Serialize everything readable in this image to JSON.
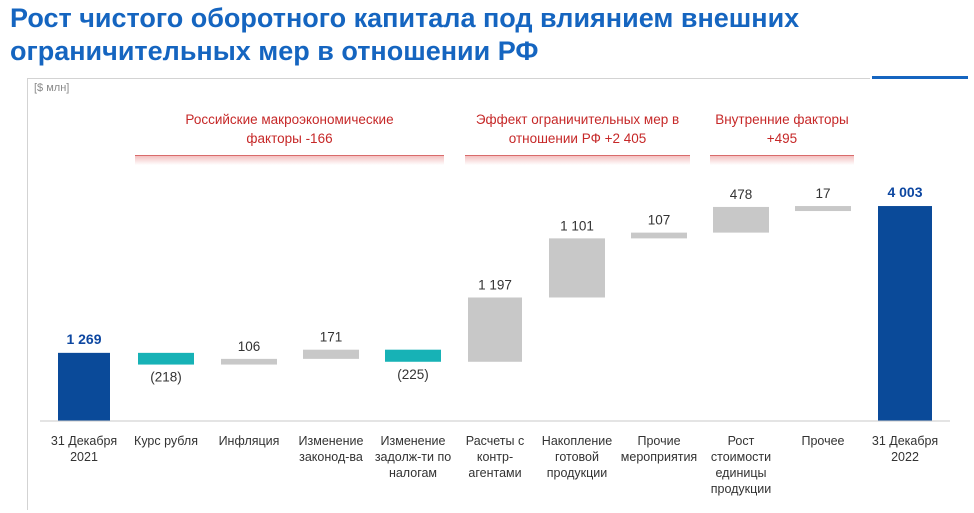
{
  "title": "Рост чистого оборотного капитала под влиянием внешних ограничительных мер в отношении РФ",
  "unit_label": "[$ млн]",
  "groups": [
    {
      "label": "Российские макроэкономические факторы -166",
      "from": 1,
      "to": 4
    },
    {
      "label": "Эффект ограничительных мер в отношении РФ +2 405",
      "from": 5,
      "to": 7
    },
    {
      "label": "Внутренние факторы +495",
      "from": 8,
      "to": 9
    }
  ],
  "colors": {
    "total": "#0a4a99",
    "negative": "#17b2b6",
    "positive": "#c8c8c8",
    "title": "#1565c0",
    "group": "#c62828"
  },
  "chart_data": {
    "type": "waterfall",
    "title": "Рост чистого оборотного капитала под влиянием внешних ограничительных мер в отношении РФ",
    "ylabel": "[$ млн]",
    "ylim": [
      0,
      4300
    ],
    "steps": [
      {
        "category": "31 Декабря 2021",
        "value": 1269,
        "kind": "total",
        "label": "1 269"
      },
      {
        "category": "Курс рубля",
        "value": -218,
        "kind": "negative",
        "label": "(218)"
      },
      {
        "category": "Инфляция",
        "value": 106,
        "kind": "positive",
        "label": "106"
      },
      {
        "category": "Изменение законод-ва",
        "value": 171,
        "kind": "positive",
        "label": "171"
      },
      {
        "category": "Изменение задолж-ти по налогам",
        "value": -225,
        "kind": "negative",
        "label": "(225)"
      },
      {
        "category": "Расчеты с контр-агентами",
        "value": 1197,
        "kind": "positive",
        "label": "1 197"
      },
      {
        "category": "Накопление готовой продукции",
        "value": 1101,
        "kind": "positive",
        "label": "1 101"
      },
      {
        "category": "Прочие мероприятия",
        "value": 107,
        "kind": "positive",
        "label": "107"
      },
      {
        "category": "Рост стоимости единицы продукции",
        "value": 478,
        "kind": "positive",
        "label": "478"
      },
      {
        "category": "Прочее",
        "value": 17,
        "kind": "positive",
        "label": "17"
      },
      {
        "category": "31 Декабря 2022",
        "value": 4003,
        "kind": "total",
        "label": "4 003"
      }
    ]
  }
}
